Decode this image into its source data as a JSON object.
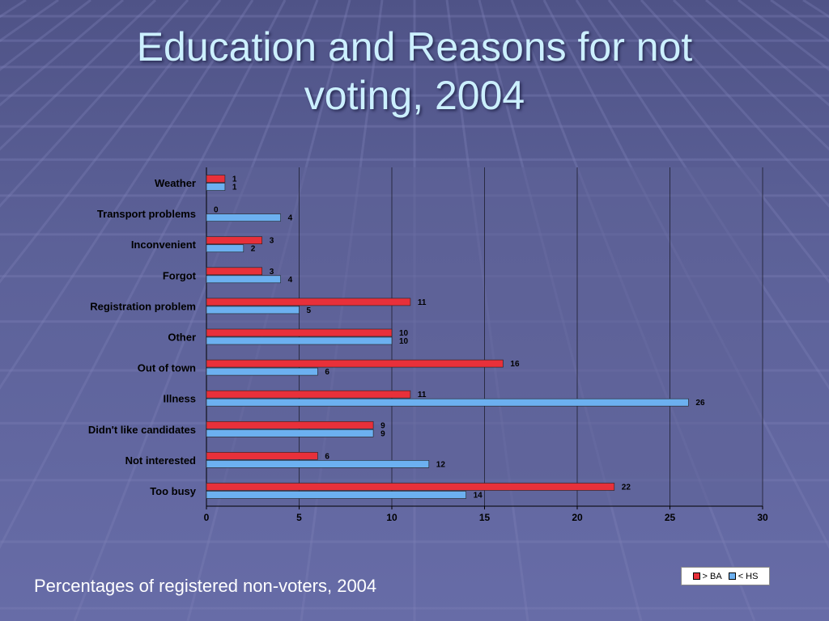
{
  "slide": {
    "title_line1": "Education and Reasons for not",
    "title_line2": "voting, 2004",
    "subtitle": "Percentages of registered non-voters, 2004"
  },
  "colors": {
    "series_ba": "#e8303a",
    "series_hs": "#6cb0f0",
    "plot_bg": "#5e6398"
  },
  "chart_data": {
    "type": "bar",
    "orientation": "horizontal",
    "categories": [
      "Weather",
      "Transport problems",
      "Inconvenient",
      "Forgot",
      "Registration problem",
      "Other",
      "Out of town",
      "Illness",
      "Didn't like candidates",
      "Not interested",
      "Too busy"
    ],
    "series": [
      {
        "name": "> BA",
        "values": [
          1,
          0,
          3,
          3,
          11,
          10,
          16,
          11,
          9,
          6,
          22
        ]
      },
      {
        "name": "< HS",
        "values": [
          1,
          4,
          2,
          4,
          5,
          10,
          6,
          26,
          9,
          12,
          14
        ]
      }
    ],
    "xlim": [
      0,
      30
    ],
    "x_ticks": [
      0,
      5,
      10,
      15,
      20,
      25,
      30
    ],
    "grid": true,
    "data_labels": true,
    "legend_position": "bottom-right"
  }
}
